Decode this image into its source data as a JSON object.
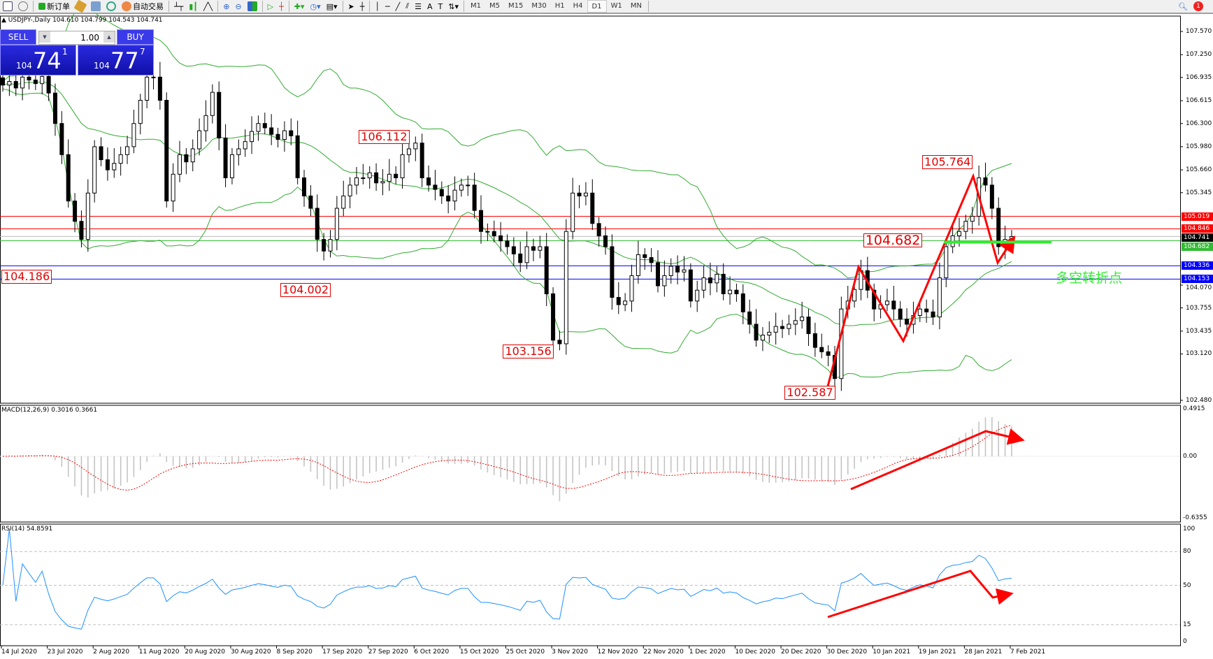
{
  "toolbar": {
    "new_order": "新订单",
    "auto_trading": "自动交易",
    "timeframes": [
      "M1",
      "M5",
      "M15",
      "M30",
      "H1",
      "H4",
      "D1",
      "W1",
      "MN"
    ],
    "active_timeframe": "D1",
    "notification_count": "1"
  },
  "chart_title": "USDJPY-,Daily  104.610 104.799 104.543 104.741",
  "trade_panel": {
    "sell_label": "SELL",
    "buy_label": "BUY",
    "lot": "1.00",
    "sell_price": {
      "prefix": "104",
      "big": "74",
      "sup": "1"
    },
    "buy_price": {
      "prefix": "104",
      "big": "77",
      "sup": "7"
    }
  },
  "colors": {
    "bull_body": "#ffffff",
    "bear_body": "#000000",
    "bands": "#33aa33",
    "resistance": "#ff0000",
    "support": "#0000ff",
    "pivot": "#33cc33",
    "annotation": "#ff0000",
    "rsi": "#1e90ff",
    "macd_hist": "#c0c0c0",
    "macd_signal": "#ff0000"
  },
  "price_axis": [
    "107.570",
    "107.250",
    "106.935",
    "106.615",
    "106.300",
    "105.980",
    "105.660",
    "105.345",
    "104.070",
    "103.755",
    "103.435",
    "103.120",
    "102.480"
  ],
  "hlines": [
    {
      "price": 105.019,
      "label": "105.019",
      "color": "#ff0000"
    },
    {
      "price": 104.846,
      "label": "104.846",
      "color": "#ff0000"
    },
    {
      "price": 104.741,
      "label": "104.741",
      "color": "#000000"
    },
    {
      "price": 104.682,
      "label": "104.682",
      "color": "#33bb33"
    },
    {
      "price": 104.336,
      "label": "104.336",
      "color": "#0000ff"
    },
    {
      "price": 104.153,
      "label": "104.153",
      "color": "#0000ff"
    }
  ],
  "price_labels": [
    {
      "text": "104.186",
      "bar": 6,
      "price": 104.186
    },
    {
      "text": "104.002",
      "bar": 43,
      "price": 104.002
    },
    {
      "text": "106.112",
      "bar": 55,
      "price": 106.112
    },
    {
      "text": "103.156",
      "bar": 77,
      "price": 103.156
    },
    {
      "text": "102.587",
      "bar": 120,
      "price": 102.587
    },
    {
      "text": "104.682",
      "bar": 132,
      "price": 104.682
    },
    {
      "text": "105.764",
      "bar": 141,
      "price": 105.764
    }
  ],
  "pivot_note": "多空转折点",
  "dates": [
    "14 Jul 2020",
    "23 Jul 2020",
    "2 Aug 2020",
    "11 Aug 2020",
    "20 Aug 2020",
    "30 Aug 2020",
    "8 Sep 2020",
    "17 Sep 2020",
    "27 Sep 2020",
    "6 Oct 2020",
    "15 Oct 2020",
    "25 Oct 2020",
    "3 Nov 2020",
    "12 Nov 2020",
    "22 Nov 2020",
    "1 Dec 2020",
    "10 Dec 2020",
    "20 Dec 2020",
    "30 Dec 2020",
    "10 Jan 2021",
    "19 Jan 2021",
    "28 Jan 2021",
    "7 Feb 2021"
  ],
  "macd": {
    "label": "MACD(12,26,9) 0.3016 0.3661",
    "axis": [
      "0.4915",
      "0.00",
      "-0.6355"
    ]
  },
  "rsi": {
    "label": "RSI(14) 54.8591",
    "axis": [
      "100",
      "80",
      "50",
      "15",
      "0"
    ]
  },
  "chart_data": {
    "type": "candlestick",
    "symbol": "USDJPY",
    "timeframe": "Daily",
    "ylim": [
      102.48,
      107.57
    ],
    "indicators": [
      "Bollinger Bands(20,2)",
      "MACD(12,26,9)",
      "RSI(14)"
    ],
    "closes": [
      106.83,
      106.88,
      106.79,
      106.94,
      106.9,
      106.85,
      106.95,
      106.72,
      106.3,
      105.87,
      105.23,
      104.95,
      104.7,
      105.34,
      105.98,
      105.8,
      105.66,
      105.75,
      105.87,
      105.98,
      106.3,
      106.62,
      106.94,
      106.94,
      106.62,
      105.23,
      105.6,
      105.87,
      105.77,
      105.95,
      106.2,
      106.41,
      106.73,
      106.1,
      105.55,
      105.87,
      105.95,
      106.05,
      106.19,
      106.3,
      106.24,
      106.15,
      106.08,
      106.2,
      106.13,
      105.55,
      105.3,
      105.13,
      104.7,
      104.54,
      104.7,
      105.13,
      105.3,
      105.45,
      105.55,
      105.55,
      105.62,
      105.48,
      105.5,
      105.6,
      105.55,
      105.87,
      105.95,
      106.03,
      105.55,
      105.45,
      105.39,
      105.3,
      105.23,
      105.38,
      105.45,
      105.45,
      105.1,
      104.81,
      104.81,
      104.75,
      104.68,
      104.6,
      104.5,
      104.38,
      104.6,
      104.55,
      104.6,
      103.95,
      103.31,
      103.26,
      104.81,
      105.34,
      105.3,
      105.34,
      104.92,
      104.75,
      104.6,
      103.9,
      103.8,
      103.85,
      104.2,
      104.49,
      104.45,
      104.38,
      104.06,
      104.2,
      104.33,
      104.25,
      104.28,
      103.85,
      104.0,
      104.17,
      104.1,
      104.22,
      103.95,
      104.0,
      103.95,
      103.7,
      103.53,
      103.31,
      103.38,
      103.42,
      103.5,
      103.47,
      103.53,
      103.58,
      103.63,
      103.4,
      103.21,
      103.15,
      103.1,
      102.78,
      103.74,
      103.85,
      104.01,
      104.27,
      104.0,
      103.74,
      103.8,
      103.85,
      103.74,
      103.6,
      103.53,
      103.65,
      103.74,
      103.7,
      103.63,
      104.17,
      104.6,
      104.75,
      104.81,
      104.95,
      105.02,
      105.55,
      105.45,
      105.13,
      104.6,
      104.7,
      104.74
    ]
  }
}
